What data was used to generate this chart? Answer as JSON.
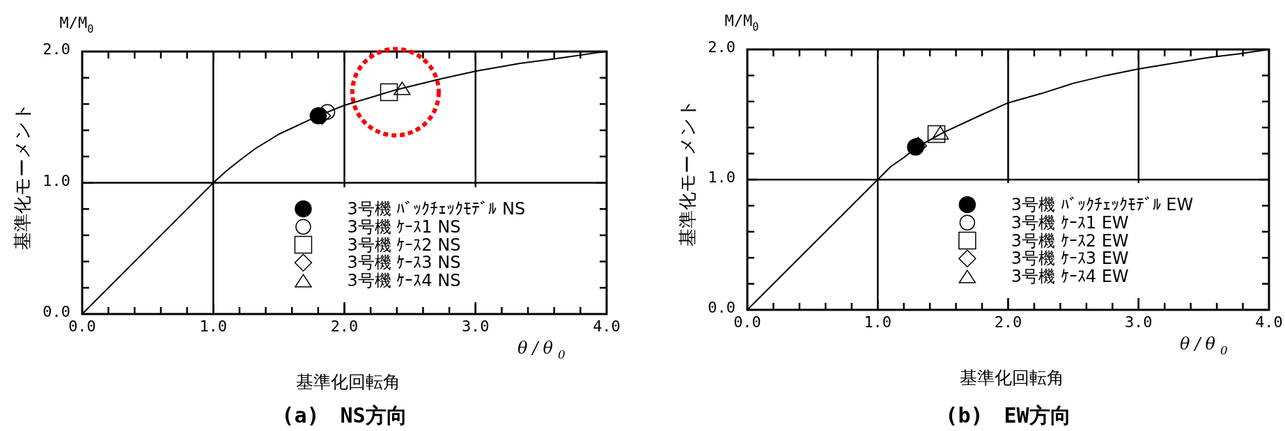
{
  "chart_data": [
    {
      "type": "scatter",
      "title": "(a)　NS方向",
      "xlabel": "基準化回転角",
      "ylabel": "基準化モーメント",
      "annotations": [
        "M/M$_{0}$",
        "θ/θ$_{0}$"
      ],
      "xlim": [
        0,
        4
      ],
      "ylim": [
        0,
        2
      ],
      "xticks": [
        {
          "value": 0,
          "label": "0.0"
        },
        {
          "value": 0.2,
          "label": null
        },
        {
          "value": 0.4,
          "label": null
        },
        {
          "value": 0.6,
          "label": null
        },
        {
          "value": 0.8,
          "label": null
        },
        {
          "value": 1,
          "label": "1.0"
        },
        {
          "value": 1.2,
          "label": null
        },
        {
          "value": 1.4,
          "label": null
        },
        {
          "value": 1.6,
          "label": null
        },
        {
          "value": 1.8,
          "label": null
        },
        {
          "value": 2,
          "label": "2.0"
        },
        {
          "value": 2.2,
          "label": null
        },
        {
          "value": 2.4,
          "label": null
        },
        {
          "value": 2.6,
          "label": null
        },
        {
          "value": 2.8,
          "label": null
        },
        {
          "value": 3,
          "label": "3.0"
        },
        {
          "value": 3.2,
          "label": null
        },
        {
          "value": 3.4,
          "label": null
        },
        {
          "value": 3.6,
          "label": null
        },
        {
          "value": 3.8,
          "label": null
        },
        {
          "value": 4,
          "label": "4.0"
        }
      ],
      "yticks": [
        {
          "value": 0,
          "label": "0.0"
        },
        {
          "value": 0.2,
          "label": null
        },
        {
          "value": 0.4,
          "label": null
        },
        {
          "value": 0.6,
          "label": null
        },
        {
          "value": 0.8,
          "label": null
        },
        {
          "value": 1,
          "label": "1.0"
        },
        {
          "value": 1.2,
          "label": null
        },
        {
          "value": 1.4,
          "label": null
        },
        {
          "value": 1.6,
          "label": null
        },
        {
          "value": 1.8,
          "label": null
        },
        {
          "value": 2,
          "label": "2.0"
        }
      ],
      "grid": true,
      "legend": "bottom right",
      "series": [
        {
          "type": "line",
          "color": "#000000",
          "marker": "none",
          "x": [
            0,
            1,
            1.1,
            1.2,
            1.32,
            1.5,
            1.8,
            2.0,
            2.2,
            2.4,
            2.73,
            3.0,
            3.34,
            3.64,
            3.92,
            4.0
          ],
          "values": [
            0,
            1,
            1.09,
            1.17,
            1.26,
            1.37,
            1.51,
            1.59,
            1.65,
            1.71,
            1.79,
            1.85,
            1.91,
            1.95,
            1.99,
            2.0
          ]
        },
        {
          "name": "3号機 ﾊﾞｯｸﾁｪｯｸﾓﾃﾞﾙ NS",
          "color": "#000000",
          "marker": "circle",
          "x": [
            1.8
          ],
          "values": [
            1.51
          ]
        },
        {
          "name": "3号機 ｹｰｽ1 NS",
          "color": "#000000",
          "marker": "circle",
          "x": [
            1.87
          ],
          "values": [
            1.54
          ]
        },
        {
          "name": "3号機 ｹｰｽ2 NS",
          "color": "#000000",
          "marker": "square",
          "x": [
            2.34
          ],
          "values": [
            1.69
          ]
        },
        {
          "name": "3号機 ｹｰｽ3 NS",
          "color": "#000000",
          "marker": "diamond",
          "x": [
            1.83
          ],
          "values": [
            1.51
          ]
        },
        {
          "name": "3号機 ｹｰｽ4 NS",
          "color": "#000000",
          "marker": "triangle",
          "x": [
            2.44
          ],
          "values": [
            1.72
          ]
        }
      ]
    },
    {
      "type": "scatter",
      "title": "(b)　EW方向",
      "xlabel": "基準化回転角",
      "ylabel": "基準化モーメント",
      "annotations": [
        "M/M$_{0}$",
        "θ/θ$_{0}$"
      ],
      "xlim": [
        0,
        4
      ],
      "ylim": [
        0,
        2
      ],
      "xticks": [
        {
          "value": 0,
          "label": "0.0"
        },
        {
          "value": 0.2,
          "label": null
        },
        {
          "value": 0.4,
          "label": null
        },
        {
          "value": 0.6,
          "label": null
        },
        {
          "value": 0.8,
          "label": null
        },
        {
          "value": 1,
          "label": "1.0"
        },
        {
          "value": 1.2,
          "label": null
        },
        {
          "value": 1.4,
          "label": null
        },
        {
          "value": 1.6,
          "label": null
        },
        {
          "value": 1.8,
          "label": null
        },
        {
          "value": 2,
          "label": "2.0"
        },
        {
          "value": 2.2,
          "label": null
        },
        {
          "value": 2.4,
          "label": null
        },
        {
          "value": 2.6,
          "label": null
        },
        {
          "value": 2.8,
          "label": null
        },
        {
          "value": 3,
          "label": "3.0"
        },
        {
          "value": 3.2,
          "label": null
        },
        {
          "value": 3.4,
          "label": null
        },
        {
          "value": 3.6,
          "label": null
        },
        {
          "value": 3.8,
          "label": null
        },
        {
          "value": 4,
          "label": "4.0"
        }
      ],
      "yticks": [
        {
          "value": 0,
          "label": "0.0"
        },
        {
          "value": 0.2,
          "label": null
        },
        {
          "value": 0.4,
          "label": null
        },
        {
          "value": 0.6,
          "label": null
        },
        {
          "value": 0.8,
          "label": null
        },
        {
          "value": 1,
          "label": "1.0"
        },
        {
          "value": 1.2,
          "label": null
        },
        {
          "value": 1.4,
          "label": null
        },
        {
          "value": 1.6,
          "label": null
        },
        {
          "value": 1.8,
          "label": null
        },
        {
          "value": 2,
          "label": "2.0"
        }
      ],
      "grid": true,
      "legend": "bottom right",
      "series": [
        {
          "type": "line",
          "color": "#000000",
          "marker": "none",
          "x": [
            0,
            1,
            1.1,
            1.2,
            1.3,
            1.5,
            1.8,
            2.0,
            2.25,
            2.5,
            2.75,
            3.0,
            3.3,
            3.55,
            3.8,
            4.0
          ],
          "values": [
            0,
            1,
            1.1,
            1.17,
            1.25,
            1.36,
            1.5,
            1.59,
            1.66,
            1.74,
            1.8,
            1.85,
            1.9,
            1.94,
            1.97,
            2.0
          ]
        },
        {
          "name": "3号機 ﾊﾞｯｸﾁｪｯｸﾓﾃﾞﾙ EW",
          "color": "#000000",
          "marker": "circle",
          "x": [
            1.29
          ],
          "values": [
            1.25
          ]
        },
        {
          "name": "3号機 ｹｰｽ1 EW",
          "color": "#000000",
          "marker": "circle",
          "x": [
            1.3
          ],
          "values": [
            1.26
          ]
        },
        {
          "name": "3号機 ｹｰｽ2 EW",
          "color": "#000000",
          "marker": "square",
          "x": [
            1.45
          ],
          "values": [
            1.35
          ]
        },
        {
          "name": "3号機 ｹｰｽ3 EW",
          "color": "#000000",
          "marker": "diamond",
          "x": [
            1.31
          ],
          "values": [
            1.26
          ]
        },
        {
          "name": "3号機 ｹｰｽ4 EW",
          "color": "#000000",
          "marker": "triangle",
          "x": [
            1.48
          ],
          "values": [
            1.36
          ]
        }
      ]
    }
  ]
}
